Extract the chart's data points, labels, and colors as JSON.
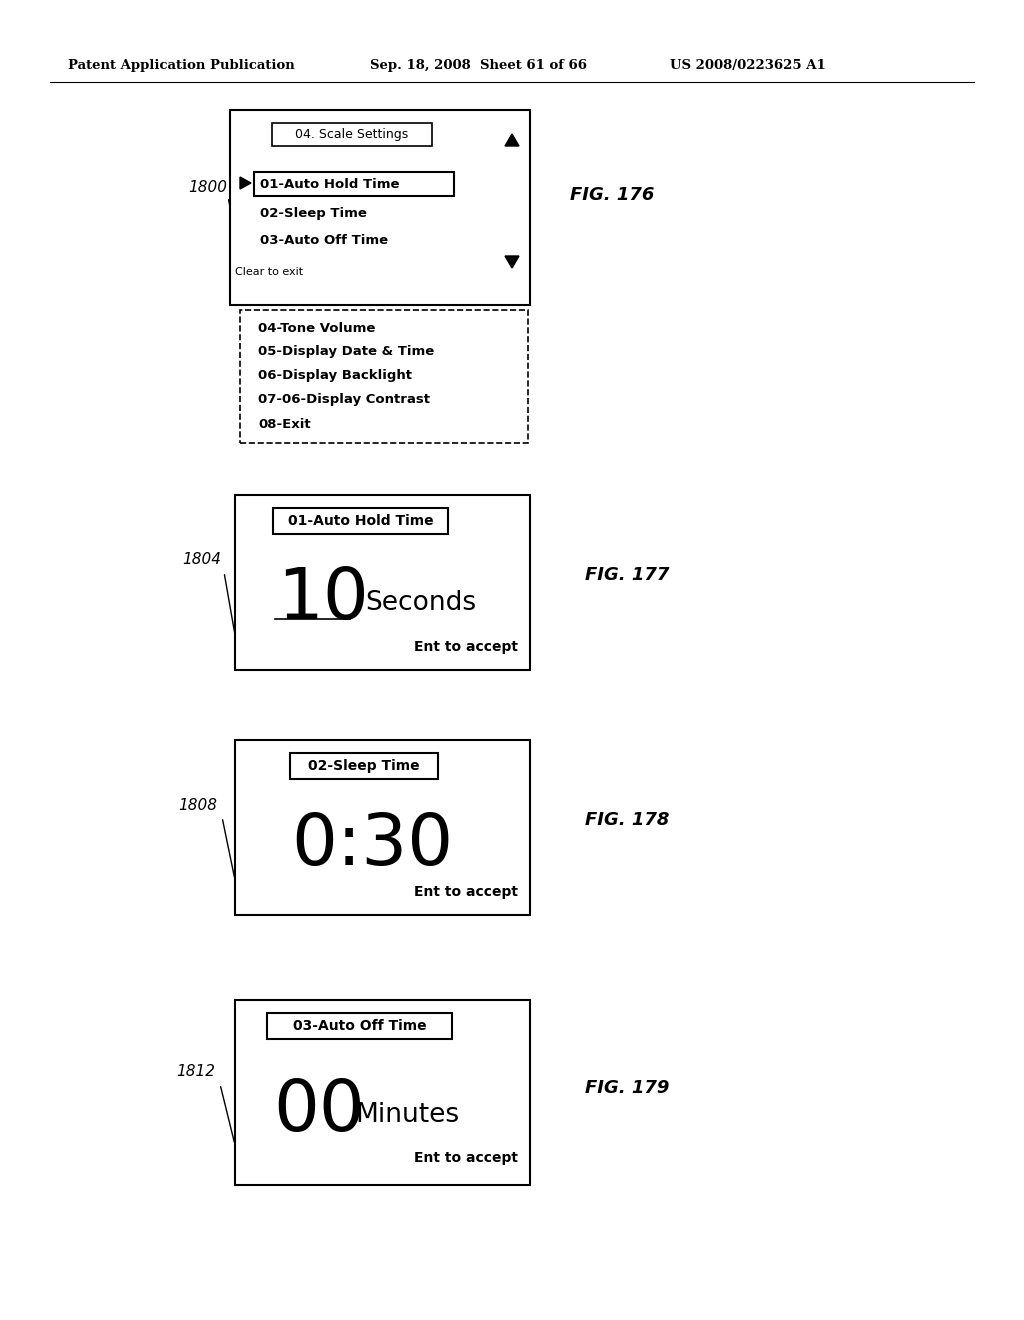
{
  "header_left": "Patent Application Publication",
  "header_mid": "Sep. 18, 2008  Sheet 61 of 66",
  "header_right": "US 2008/0223625 A1",
  "bg_color": "#ffffff",
  "fig176_label": "1800",
  "fig176_fig_label": "FIG. 176",
  "fig176_title_box": "04. Scale Settings",
  "fig176_menu_items": [
    "01-Auto Hold Time",
    "02-Sleep Time",
    "03-Auto Off Time"
  ],
  "fig176_clear": "Clear to exit",
  "fig176_extra_items": [
    "04-Tone Volume",
    "05-Display Date & Time",
    "06-Display Backlight",
    "07-06-Display Contrast",
    "08-Exit"
  ],
  "fig177_label": "1804",
  "fig177_fig_label": "FIG. 177",
  "fig177_title_box": "01-Auto Hold Time",
  "fig177_value": "10",
  "fig177_unit": "Seconds",
  "fig177_accept": "Ent to accept",
  "fig178_label": "1808",
  "fig178_fig_label": "FIG. 178",
  "fig178_title_box": "02-Sleep Time",
  "fig178_value": "0:30",
  "fig178_accept": "Ent to accept",
  "fig179_label": "1812",
  "fig179_fig_label": "FIG. 179",
  "fig179_title_box": "03-Auto Off Time",
  "fig179_value": "00",
  "fig179_unit": "Minutes",
  "fig179_accept": "Ent to accept"
}
